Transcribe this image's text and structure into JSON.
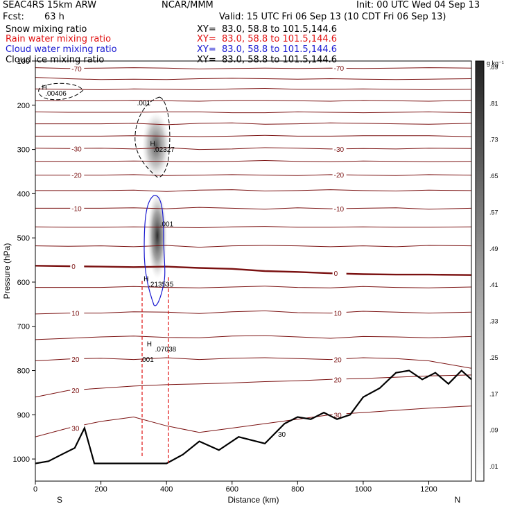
{
  "header": {
    "model": "SEAC4RS 15km ARW",
    "center": "NCAR/MMM",
    "init": "Init: 00 UTC Wed 04 Sep 13",
    "fcst_label": "Fcst:",
    "fcst_value": "63 h",
    "valid": "Valid: 15 UTC Fri 06 Sep 13 (10 CDT Fri 06 Sep 13)"
  },
  "fields": [
    {
      "name": "Snow mixing ratio",
      "xy": "XY=  83.0, 58.8 to 101.5,144.6",
      "color": "#000000"
    },
    {
      "name": "Rain water mixing ratio",
      "xy": "XY=  83.0, 58.8 to 101.5,144.6",
      "color": "#e01010"
    },
    {
      "name": "Cloud water mixing ratio",
      "xy": "XY=  83.0, 58.8 to 101.5,144.6",
      "color": "#1a1ad0"
    },
    {
      "name": "Cloud ice mixing ratio",
      "xy": "XY=  83.0, 58.8 to 101.5,144.6",
      "color": "#000000"
    }
  ],
  "chart_data": {
    "type": "cross-section",
    "xlabel": "Distance (km)",
    "ylabel": "Pressure (hPa)",
    "xlim": [
      0,
      1330
    ],
    "ylim": [
      1050,
      100
    ],
    "xticks": [
      0,
      200,
      400,
      600,
      800,
      1000,
      1200
    ],
    "yticks": [
      100,
      200,
      300,
      400,
      500,
      600,
      700,
      800,
      900,
      1000
    ],
    "x_endpoints": {
      "left": "S",
      "right": "N"
    },
    "colorbar": {
      "unit": "g kg⁻¹",
      "labels": [
        ".01",
        ".09",
        ".17",
        ".25",
        ".33",
        ".41",
        ".49",
        ".57",
        ".65",
        ".73",
        ".81",
        ".89"
      ]
    },
    "temperature_contours": [
      {
        "label": "-70",
        "p": [
          115,
          117,
          116,
          115,
          116,
          118,
          117,
          116,
          117,
          116,
          117,
          116,
          115,
          116
        ]
      },
      {
        "label": "",
        "p": [
          137,
          140,
          142,
          141,
          142,
          140,
          139,
          140,
          141,
          140,
          141,
          142,
          141,
          140
        ]
      },
      {
        "label": "",
        "p": [
          163,
          164,
          165,
          163,
          164,
          165,
          163,
          162,
          164,
          164,
          163,
          164,
          165,
          164
        ]
      },
      {
        "label": "",
        "p": [
          190,
          190,
          190,
          189,
          190,
          191,
          189,
          189,
          190,
          191,
          189,
          190,
          191,
          189
        ]
      },
      {
        "label": "",
        "p": [
          215,
          216,
          216,
          216,
          215,
          215,
          217,
          217,
          215,
          216,
          217,
          216,
          215,
          217
        ]
      },
      {
        "label": "",
        "p": [
          242,
          242,
          242,
          241,
          244,
          241,
          240,
          243,
          242,
          240,
          241,
          242,
          243,
          241
        ]
      },
      {
        "label": "",
        "p": [
          270,
          270,
          270,
          269,
          270,
          271,
          270,
          268,
          270,
          270,
          269,
          269,
          269,
          271
        ]
      },
      {
        "label": "-30",
        "p": [
          297,
          298,
          297,
          299,
          296,
          300,
          299,
          296,
          297,
          299,
          298,
          299,
          297,
          298
        ]
      },
      {
        "label": "",
        "p": [
          327,
          327,
          327,
          326,
          327,
          328,
          327,
          325,
          327,
          328,
          326,
          327,
          328,
          327
        ]
      },
      {
        "label": "-20",
        "p": [
          358,
          358,
          358,
          357,
          359,
          358,
          357,
          358,
          359,
          357,
          358,
          359,
          357,
          358
        ]
      },
      {
        "label": "",
        "p": [
          393,
          393,
          393,
          392,
          395,
          392,
          391,
          394,
          393,
          391,
          393,
          394,
          392,
          393
        ]
      },
      {
        "label": "-10",
        "p": [
          433,
          433,
          433,
          432,
          434,
          431,
          433,
          435,
          432,
          434,
          433,
          432,
          435,
          433
        ]
      },
      {
        "label": "",
        "p": [
          475,
          476,
          476,
          475,
          476,
          477,
          475,
          474,
          476,
          476,
          475,
          476,
          476,
          475
        ]
      },
      {
        "label": "",
        "p": [
          518,
          519,
          518,
          520,
          517,
          521,
          518,
          517,
          518,
          520,
          518,
          520,
          517,
          518
        ]
      },
      {
        "label": "0",
        "p": [
          563,
          564,
          565,
          566,
          565,
          568,
          570,
          575,
          577,
          580,
          582,
          583,
          583,
          584
        ]
      },
      {
        "label": "",
        "p": [
          612,
          612,
          612,
          610,
          612,
          613,
          611,
          609,
          612,
          613,
          610,
          612,
          613,
          611
        ]
      },
      {
        "label": "10",
        "p": [
          672,
          670,
          670,
          667,
          668,
          671,
          667,
          665,
          669,
          670,
          666,
          668,
          670,
          668
        ]
      },
      {
        "label": "",
        "p": [
          730,
          727,
          724,
          722,
          725,
          726,
          722,
          721,
          724,
          727,
          723,
          724,
          726,
          723
        ]
      },
      {
        "label": "20",
        "p": [
          778,
          774,
          772,
          775,
          771,
          775,
          772,
          771,
          773,
          775,
          771,
          773,
          778,
          795
        ]
      },
      {
        "label": "20",
        "p": [
          860,
          845,
          840,
          835,
          832,
          830,
          828,
          825,
          823,
          820,
          818,
          815,
          812,
          810
        ]
      },
      {
        "label": "30",
        "p": [
          950,
          930,
          915,
          905,
          925,
          940,
          930,
          920,
          910,
          900,
          895,
          890,
          885,
          880
        ]
      }
    ],
    "contour_x": [
      0,
      100,
      200,
      300,
      400,
      500,
      600,
      700,
      800,
      900,
      1000,
      1100,
      1200,
      1330
    ],
    "terrain": {
      "x": [
        0,
        40,
        80,
        120,
        150,
        180,
        250,
        320,
        400,
        450,
        500,
        560,
        620,
        700,
        760,
        800,
        840,
        880,
        920,
        960,
        1000,
        1050,
        1100,
        1140,
        1180,
        1220,
        1260,
        1300,
        1330
      ],
      "p": [
        1010,
        1005,
        990,
        975,
        930,
        1010,
        1010,
        1010,
        1010,
        990,
        960,
        980,
        950,
        965,
        920,
        905,
        910,
        895,
        910,
        900,
        860,
        840,
        805,
        800,
        820,
        805,
        830,
        800,
        820
      ]
    },
    "annotations": [
      {
        "text": "H",
        "x": 20,
        "p": 165
      },
      {
        "text": ".00406",
        "x": 30,
        "p": 178
      },
      {
        "text": ".001",
        "x": 310,
        "p": 200
      },
      {
        "text": "H",
        "x": 350,
        "p": 292
      },
      {
        "text": ".02327",
        "x": 360,
        "p": 305
      },
      {
        "text": ".001",
        "x": 380,
        "p": 474
      },
      {
        "text": "H",
        "x": 330,
        "p": 598
      },
      {
        "text": ".213535",
        "x": 345,
        "p": 610
      },
      {
        "text": "H",
        "x": 340,
        "p": 745
      },
      {
        "text": ".07038",
        "x": 365,
        "p": 757
      },
      {
        "text": ".001",
        "x": 320,
        "p": 780
      },
      {
        "text": "30",
        "x": 740,
        "p": 950
      }
    ]
  }
}
